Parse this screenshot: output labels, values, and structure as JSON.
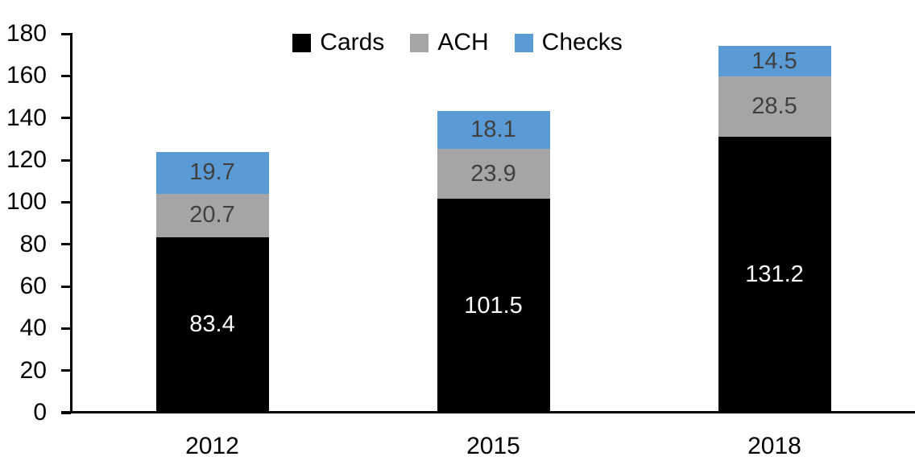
{
  "chart_data": {
    "type": "bar",
    "stacked": true,
    "title": "",
    "xlabel": "",
    "ylabel": "",
    "categories": [
      "2012",
      "2015",
      "2018"
    ],
    "series": [
      {
        "name": "Cards",
        "color": "#000000",
        "label_color": "#FFFFFF",
        "values": [
          83.4,
          101.5,
          131.2
        ]
      },
      {
        "name": "ACH",
        "color": "#A5A5A5",
        "label_color": "#404040",
        "values": [
          20.7,
          23.9,
          28.5
        ]
      },
      {
        "name": "Checks",
        "color": "#5B9BD5",
        "label_color": "#404040",
        "values": [
          19.7,
          18.1,
          14.5
        ]
      }
    ],
    "stack_totals": [
      123.8,
      143.5,
      174.2
    ],
    "ylim": [
      0,
      180
    ],
    "yticks": [
      0,
      20,
      40,
      60,
      80,
      100,
      120,
      140,
      160,
      180
    ],
    "value_decimals": 1,
    "grid": false,
    "legend_position": "top-center",
    "axis_color": "#000000",
    "background_color": "#FFFFFF"
  }
}
